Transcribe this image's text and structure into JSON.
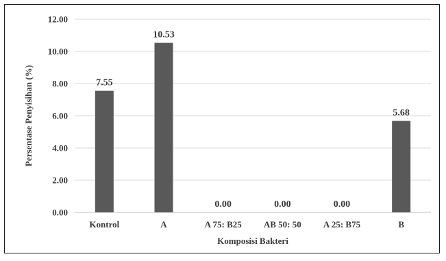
{
  "chart_data": {
    "type": "bar",
    "categories": [
      "Kontrol",
      "A",
      "A 75: B25",
      "AB 50: 50",
      "A 25: B75",
      "B"
    ],
    "values": [
      7.55,
      10.53,
      0.0,
      0.0,
      0.0,
      5.68
    ],
    "data_labels": [
      "7.55",
      "10.53",
      "0.00",
      "0.00",
      "0.00",
      "5.68"
    ],
    "title": "",
    "xlabel": "Komposisi Bakteri",
    "ylabel": "Persentase Penyisihan (%)",
    "ylim": [
      0,
      12
    ],
    "yticks": [
      "0.00",
      "2.00",
      "4.00",
      "6.00",
      "8.00",
      "10.00",
      "12.00"
    ],
    "grid": true,
    "legend": "none",
    "colors": {
      "bar": "#595959",
      "grid": "#d9d9d9",
      "text": "#3a3a3a"
    }
  }
}
